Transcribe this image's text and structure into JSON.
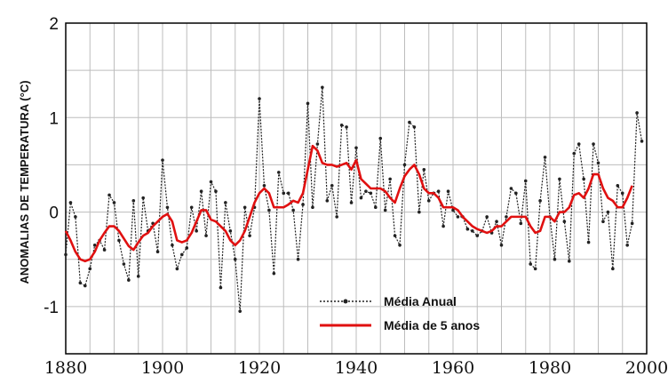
{
  "chart_data": {
    "type": "line",
    "xlabel": "",
    "ylabel": "ANOMALIAS DE TEMPERATURA (°C)",
    "xlim": [
      1880,
      2000
    ],
    "ylim": [
      -1.5,
      2
    ],
    "xticks": [
      1880,
      1900,
      1920,
      1940,
      1960,
      1980,
      2000
    ],
    "yticks": [
      -1,
      0,
      1,
      2
    ],
    "ytick_labels": [
      "-1",
      "0",
      "1",
      "2"
    ],
    "grid": true,
    "legend_position": "bottom-center",
    "series": [
      {
        "name": "Média Anual",
        "color": "#222222",
        "style": "dotted-with-markers",
        "x": [
          1880,
          1881,
          1882,
          1883,
          1884,
          1885,
          1886,
          1887,
          1888,
          1889,
          1890,
          1891,
          1892,
          1893,
          1894,
          1895,
          1896,
          1897,
          1898,
          1899,
          1900,
          1901,
          1902,
          1903,
          1904,
          1905,
          1906,
          1907,
          1908,
          1909,
          1910,
          1911,
          1912,
          1913,
          1914,
          1915,
          1916,
          1917,
          1918,
          1919,
          1920,
          1921,
          1922,
          1923,
          1924,
          1925,
          1926,
          1927,
          1928,
          1929,
          1930,
          1931,
          1932,
          1933,
          1934,
          1935,
          1936,
          1937,
          1938,
          1939,
          1940,
          1941,
          1942,
          1943,
          1944,
          1945,
          1946,
          1947,
          1948,
          1949,
          1950,
          1951,
          1952,
          1953,
          1954,
          1955,
          1956,
          1957,
          1958,
          1959,
          1960,
          1961,
          1962,
          1963,
          1964,
          1965,
          1966,
          1967,
          1968,
          1969,
          1970,
          1971,
          1972,
          1973,
          1974,
          1975,
          1976,
          1977,
          1978,
          1979,
          1980,
          1981,
          1982,
          1983,
          1984,
          1985,
          1986,
          1987,
          1988,
          1989,
          1990,
          1991,
          1992,
          1993,
          1994,
          1995,
          1996,
          1997,
          1998,
          1999
        ],
        "values": [
          -0.45,
          0.1,
          -0.05,
          -0.75,
          -0.78,
          -0.6,
          -0.35,
          -0.3,
          -0.4,
          0.18,
          0.1,
          -0.3,
          -0.55,
          -0.72,
          0.12,
          -0.68,
          0.15,
          -0.2,
          -0.12,
          -0.42,
          0.55,
          0.05,
          -0.35,
          -0.6,
          -0.45,
          -0.38,
          0.05,
          -0.2,
          0.22,
          -0.25,
          0.32,
          0.22,
          -0.8,
          0.1,
          -0.2,
          -0.5,
          -1.05,
          0.05,
          -0.25,
          0.05,
          1.2,
          0.28,
          0.02,
          -0.65,
          0.42,
          0.2,
          0.2,
          0.02,
          -0.5,
          0.08,
          1.15,
          0.05,
          0.72,
          1.32,
          0.12,
          0.28,
          -0.05,
          0.92,
          0.9,
          0.1,
          0.68,
          0.15,
          0.22,
          0.2,
          0.05,
          0.78,
          0.02,
          0.35,
          -0.25,
          -0.35,
          0.5,
          0.95,
          0.9,
          0.0,
          0.45,
          0.12,
          0.2,
          0.22,
          -0.15,
          0.22,
          0.02,
          -0.05,
          -0.05,
          -0.18,
          -0.2,
          -0.25,
          -0.2,
          -0.05,
          -0.22,
          -0.1,
          -0.35,
          -0.05,
          0.25,
          0.2,
          -0.12,
          0.33,
          -0.55,
          -0.6,
          0.12,
          0.58,
          -0.05,
          -0.5,
          0.35,
          -0.1,
          -0.52,
          0.62,
          0.72,
          0.35,
          -0.32,
          0.72,
          0.52,
          -0.1,
          0.0,
          -0.6,
          0.28,
          0.2,
          -0.35,
          -0.12,
          1.05,
          0.75
        ]
      },
      {
        "name": "Média de 5 anos",
        "color": "#e01010",
        "style": "solid",
        "x": [
          1880,
          1881,
          1882,
          1883,
          1884,
          1885,
          1886,
          1887,
          1888,
          1889,
          1890,
          1891,
          1892,
          1893,
          1894,
          1895,
          1896,
          1897,
          1898,
          1899,
          1900,
          1901,
          1902,
          1903,
          1904,
          1905,
          1906,
          1907,
          1908,
          1909,
          1910,
          1911,
          1912,
          1913,
          1914,
          1915,
          1916,
          1917,
          1918,
          1919,
          1920,
          1921,
          1922,
          1923,
          1924,
          1925,
          1926,
          1927,
          1928,
          1929,
          1930,
          1931,
          1932,
          1933,
          1934,
          1935,
          1936,
          1937,
          1938,
          1939,
          1940,
          1941,
          1942,
          1943,
          1944,
          1945,
          1946,
          1947,
          1948,
          1949,
          1950,
          1951,
          1952,
          1953,
          1954,
          1955,
          1956,
          1957,
          1958,
          1959,
          1960,
          1961,
          1962,
          1963,
          1964,
          1965,
          1966,
          1967,
          1968,
          1969,
          1970,
          1971,
          1972,
          1973,
          1974,
          1975,
          1976,
          1977,
          1978,
          1979,
          1980,
          1981,
          1982,
          1983,
          1984,
          1985,
          1986,
          1987,
          1988,
          1989,
          1990,
          1991,
          1992,
          1993,
          1994,
          1995,
          1996,
          1997
        ],
        "values": [
          -0.2,
          -0.3,
          -0.42,
          -0.5,
          -0.52,
          -0.5,
          -0.42,
          -0.3,
          -0.22,
          -0.15,
          -0.15,
          -0.2,
          -0.28,
          -0.36,
          -0.4,
          -0.32,
          -0.25,
          -0.22,
          -0.15,
          -0.1,
          -0.05,
          -0.02,
          -0.1,
          -0.3,
          -0.32,
          -0.3,
          -0.22,
          -0.1,
          0.02,
          0.02,
          -0.08,
          -0.1,
          -0.15,
          -0.2,
          -0.3,
          -0.35,
          -0.3,
          -0.2,
          -0.05,
          0.1,
          0.2,
          0.25,
          0.2,
          0.05,
          0.05,
          0.05,
          0.08,
          0.12,
          0.1,
          0.2,
          0.45,
          0.7,
          0.65,
          0.52,
          0.5,
          0.5,
          0.48,
          0.5,
          0.52,
          0.45,
          0.55,
          0.35,
          0.3,
          0.25,
          0.25,
          0.25,
          0.22,
          0.15,
          0.1,
          0.25,
          0.38,
          0.45,
          0.5,
          0.4,
          0.25,
          0.2,
          0.2,
          0.15,
          0.05,
          0.05,
          0.05,
          0.02,
          -0.05,
          -0.1,
          -0.15,
          -0.18,
          -0.2,
          -0.22,
          -0.2,
          -0.15,
          -0.15,
          -0.1,
          -0.05,
          -0.05,
          -0.05,
          -0.05,
          -0.15,
          -0.22,
          -0.2,
          -0.05,
          -0.05,
          -0.1,
          0.0,
          0.0,
          0.05,
          0.18,
          0.2,
          0.15,
          0.25,
          0.4,
          0.4,
          0.25,
          0.15,
          0.12,
          0.05,
          0.05,
          0.15,
          0.28
        ]
      }
    ]
  }
}
